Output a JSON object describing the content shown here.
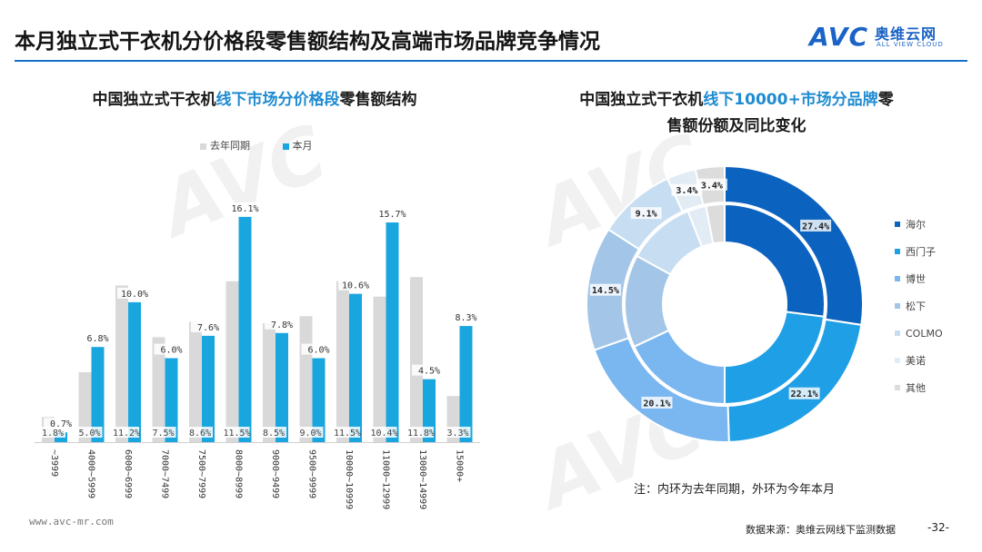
{
  "page": {
    "title": "本月独立式干衣机分价格段零售额结构及高端市场品牌竞争情况",
    "logo_text": "AVC",
    "logo_cn": "奥维云网",
    "logo_en": "ALL VIEW CLOUD",
    "page_number": "-32-",
    "footer_url": "www.avc-mr.com",
    "footer_source": "数据来源：奥维云网线下监测数据",
    "note": "注：内环为去年同期，外环为今年本月"
  },
  "colors": {
    "accent": "#1570c9",
    "bar_last_year": "#d9d9d9",
    "bar_this_month": "#19a6df",
    "highlight_text": "#1e8bd1"
  },
  "chart_data": [
    {
      "type": "bar",
      "title_parts": [
        "中国独立式干衣机",
        "线下市场分价格段",
        "零售额结构"
      ],
      "categories": [
        "~3999",
        "4000~5999",
        "6000~6999",
        "7000~7499",
        "7500~7999",
        "8000~8999",
        "9000~9499",
        "9500~9999",
        "10000~10999",
        "11000~12999",
        "13000~14999",
        "15000+"
      ],
      "series": [
        {
          "name": "去年同期",
          "values": [
            1.8,
            5.0,
            11.2,
            7.5,
            8.6,
            11.5,
            8.5,
            9.0,
            11.5,
            10.4,
            11.8,
            3.3
          ]
        },
        {
          "name": "本月",
          "values": [
            0.7,
            6.8,
            10.0,
            6.0,
            7.6,
            16.1,
            7.8,
            6.0,
            10.6,
            15.7,
            4.5,
            8.3
          ]
        }
      ],
      "labels_last_year": [
        "1.8%",
        "5.0%",
        "11.2%",
        "7.5%",
        "8.6%",
        "11.5%",
        "8.5%",
        "9.0%",
        "11.5%",
        "10.4%",
        "11.8%",
        "3.3%"
      ],
      "labels_this_month": [
        "0.7%",
        "6.8%",
        "10.0%",
        "6.0%",
        "7.6%",
        "16.1%",
        "7.8%",
        "6.0%",
        "10.6%",
        "15.7%",
        "4.5%",
        "8.3%"
      ],
      "legend": [
        "去年同期",
        "本月"
      ],
      "ylim": [
        0,
        17
      ]
    },
    {
      "type": "pie",
      "title_line1_parts": [
        "中国独立式干衣机",
        "线下10000+市场分品牌",
        "零"
      ],
      "title_line2": "售额份额及同比变化",
      "categories": [
        "海尔",
        "西门子",
        "博世",
        "松下",
        "COLMO",
        "美诺",
        "其他"
      ],
      "colors": [
        "#0c63bf",
        "#1f9fe6",
        "#7ab6ef",
        "#a3c6e8",
        "#c6ddf2",
        "#e2ecf5",
        "#dcdcdc"
      ],
      "outer_this_month": [
        27.4,
        22.1,
        20.1,
        14.5,
        9.1,
        3.4,
        3.4
      ],
      "inner_last_year": [
        27.0,
        23.0,
        18.0,
        15.0,
        11.0,
        3.0,
        3.0
      ],
      "outer_labels": [
        "27.4%",
        "22.1%",
        "20.1%",
        "14.5%",
        "9.1%",
        "3.4%",
        "3.4%"
      ]
    }
  ]
}
